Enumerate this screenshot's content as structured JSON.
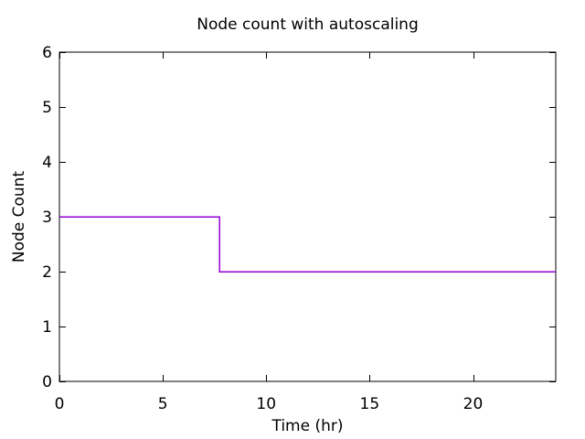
{
  "page": {
    "background": "#ffffff",
    "text_color": "#000000"
  },
  "chart_data": {
    "type": "line",
    "subtype": "step",
    "title": "Node count with autoscaling",
    "xlabel": "Time (hr)",
    "ylabel": "Node Count",
    "xlim": [
      0,
      24
    ],
    "ylim": [
      0,
      6
    ],
    "xticks": [
      0,
      5,
      10,
      15,
      20
    ],
    "yticks": [
      0,
      1,
      2,
      3,
      4,
      5,
      6
    ],
    "grid": false,
    "legend": false,
    "axis_color": "#000000",
    "tick_style": "inward-mirrored",
    "series": [
      {
        "name": "node-count",
        "color": "#9400d3",
        "points": [
          [
            0,
            3
          ],
          [
            7.75,
            3
          ],
          [
            7.75,
            2
          ],
          [
            24,
            2
          ]
        ]
      }
    ]
  }
}
